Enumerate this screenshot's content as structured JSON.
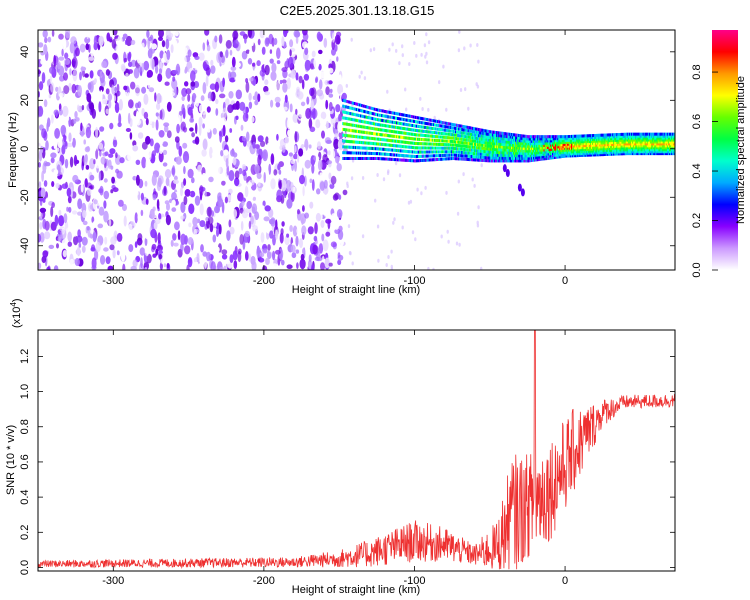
{
  "title": "C2E5.2025.301.13.18.G15",
  "chart_data": [
    {
      "type": "heatmap",
      "xlabel": "Height of straight line (km)",
      "ylabel": "Frequency (Hz)",
      "xlim": [
        -350,
        73
      ],
      "ylim": [
        -50,
        49
      ],
      "xticks": [
        -300,
        -200,
        -100,
        0
      ],
      "yticks": [
        -40,
        -20,
        0,
        20,
        40
      ],
      "noise_region_end_km": -145,
      "signal_ridge": [
        {
          "x": -148,
          "freq": 8,
          "width": 12
        },
        {
          "x": -125,
          "freq": 6,
          "width": 10
        },
        {
          "x": -100,
          "freq": 4,
          "width": 9
        },
        {
          "x": -75,
          "freq": 3,
          "width": 7
        },
        {
          "x": -50,
          "freq": 1,
          "width": 6
        },
        {
          "x": -25,
          "freq": 0,
          "width": 5
        },
        {
          "x": 0,
          "freq": 1,
          "width": 4
        },
        {
          "x": 40,
          "freq": 2,
          "width": 4
        },
        {
          "x": 73,
          "freq": 2,
          "width": 4
        }
      ],
      "colorbar": {
        "label": "Normalized spectral amplitude",
        "ticks": [
          0.0,
          0.2,
          0.4,
          0.6,
          0.8
        ],
        "colors": [
          "#ffffff",
          "#cc99ff",
          "#8800ff",
          "#0000ff",
          "#00aaff",
          "#00ffcc",
          "#00ff44",
          "#66ff00",
          "#ffff00",
          "#ff9900",
          "#ff0000",
          "#ff0088"
        ]
      }
    },
    {
      "type": "line",
      "xlabel": "Height of straight line (km)",
      "ylabel": "SNR (10 * v/v)",
      "scale_label_base": "(x10",
      "scale_label_exp": "4",
      "scale_label_end": ")",
      "xlim": [
        -350,
        73
      ],
      "ylim": [
        -0.02,
        1.35
      ],
      "xticks": [
        -300,
        -200,
        -100,
        0
      ],
      "yticks": [
        "0.0",
        "0.2",
        "0.4",
        "0.6",
        "0.8",
        "1.0",
        "1.2"
      ],
      "color": "#ee3030",
      "envelope": [
        {
          "x": -350,
          "base": 0.02,
          "amp": 0.02
        },
        {
          "x": -180,
          "base": 0.03,
          "amp": 0.03
        },
        {
          "x": -150,
          "base": 0.05,
          "amp": 0.05
        },
        {
          "x": -130,
          "base": 0.08,
          "amp": 0.08
        },
        {
          "x": -100,
          "base": 0.15,
          "amp": 0.12
        },
        {
          "x": -80,
          "base": 0.13,
          "amp": 0.1
        },
        {
          "x": -60,
          "base": 0.07,
          "amp": 0.06
        },
        {
          "x": -45,
          "base": 0.12,
          "amp": 0.15
        },
        {
          "x": -35,
          "base": 0.3,
          "amp": 0.35
        },
        {
          "x": -25,
          "base": 0.35,
          "amp": 0.3
        },
        {
          "x": -10,
          "base": 0.45,
          "amp": 0.3
        },
        {
          "x": 5,
          "base": 0.65,
          "amp": 0.25
        },
        {
          "x": 25,
          "base": 0.88,
          "amp": 0.08
        },
        {
          "x": 40,
          "base": 0.94,
          "amp": 0.04
        },
        {
          "x": 73,
          "base": 0.95,
          "amp": 0.04
        }
      ],
      "spike": {
        "x": -20,
        "y": 1.35
      }
    }
  ]
}
